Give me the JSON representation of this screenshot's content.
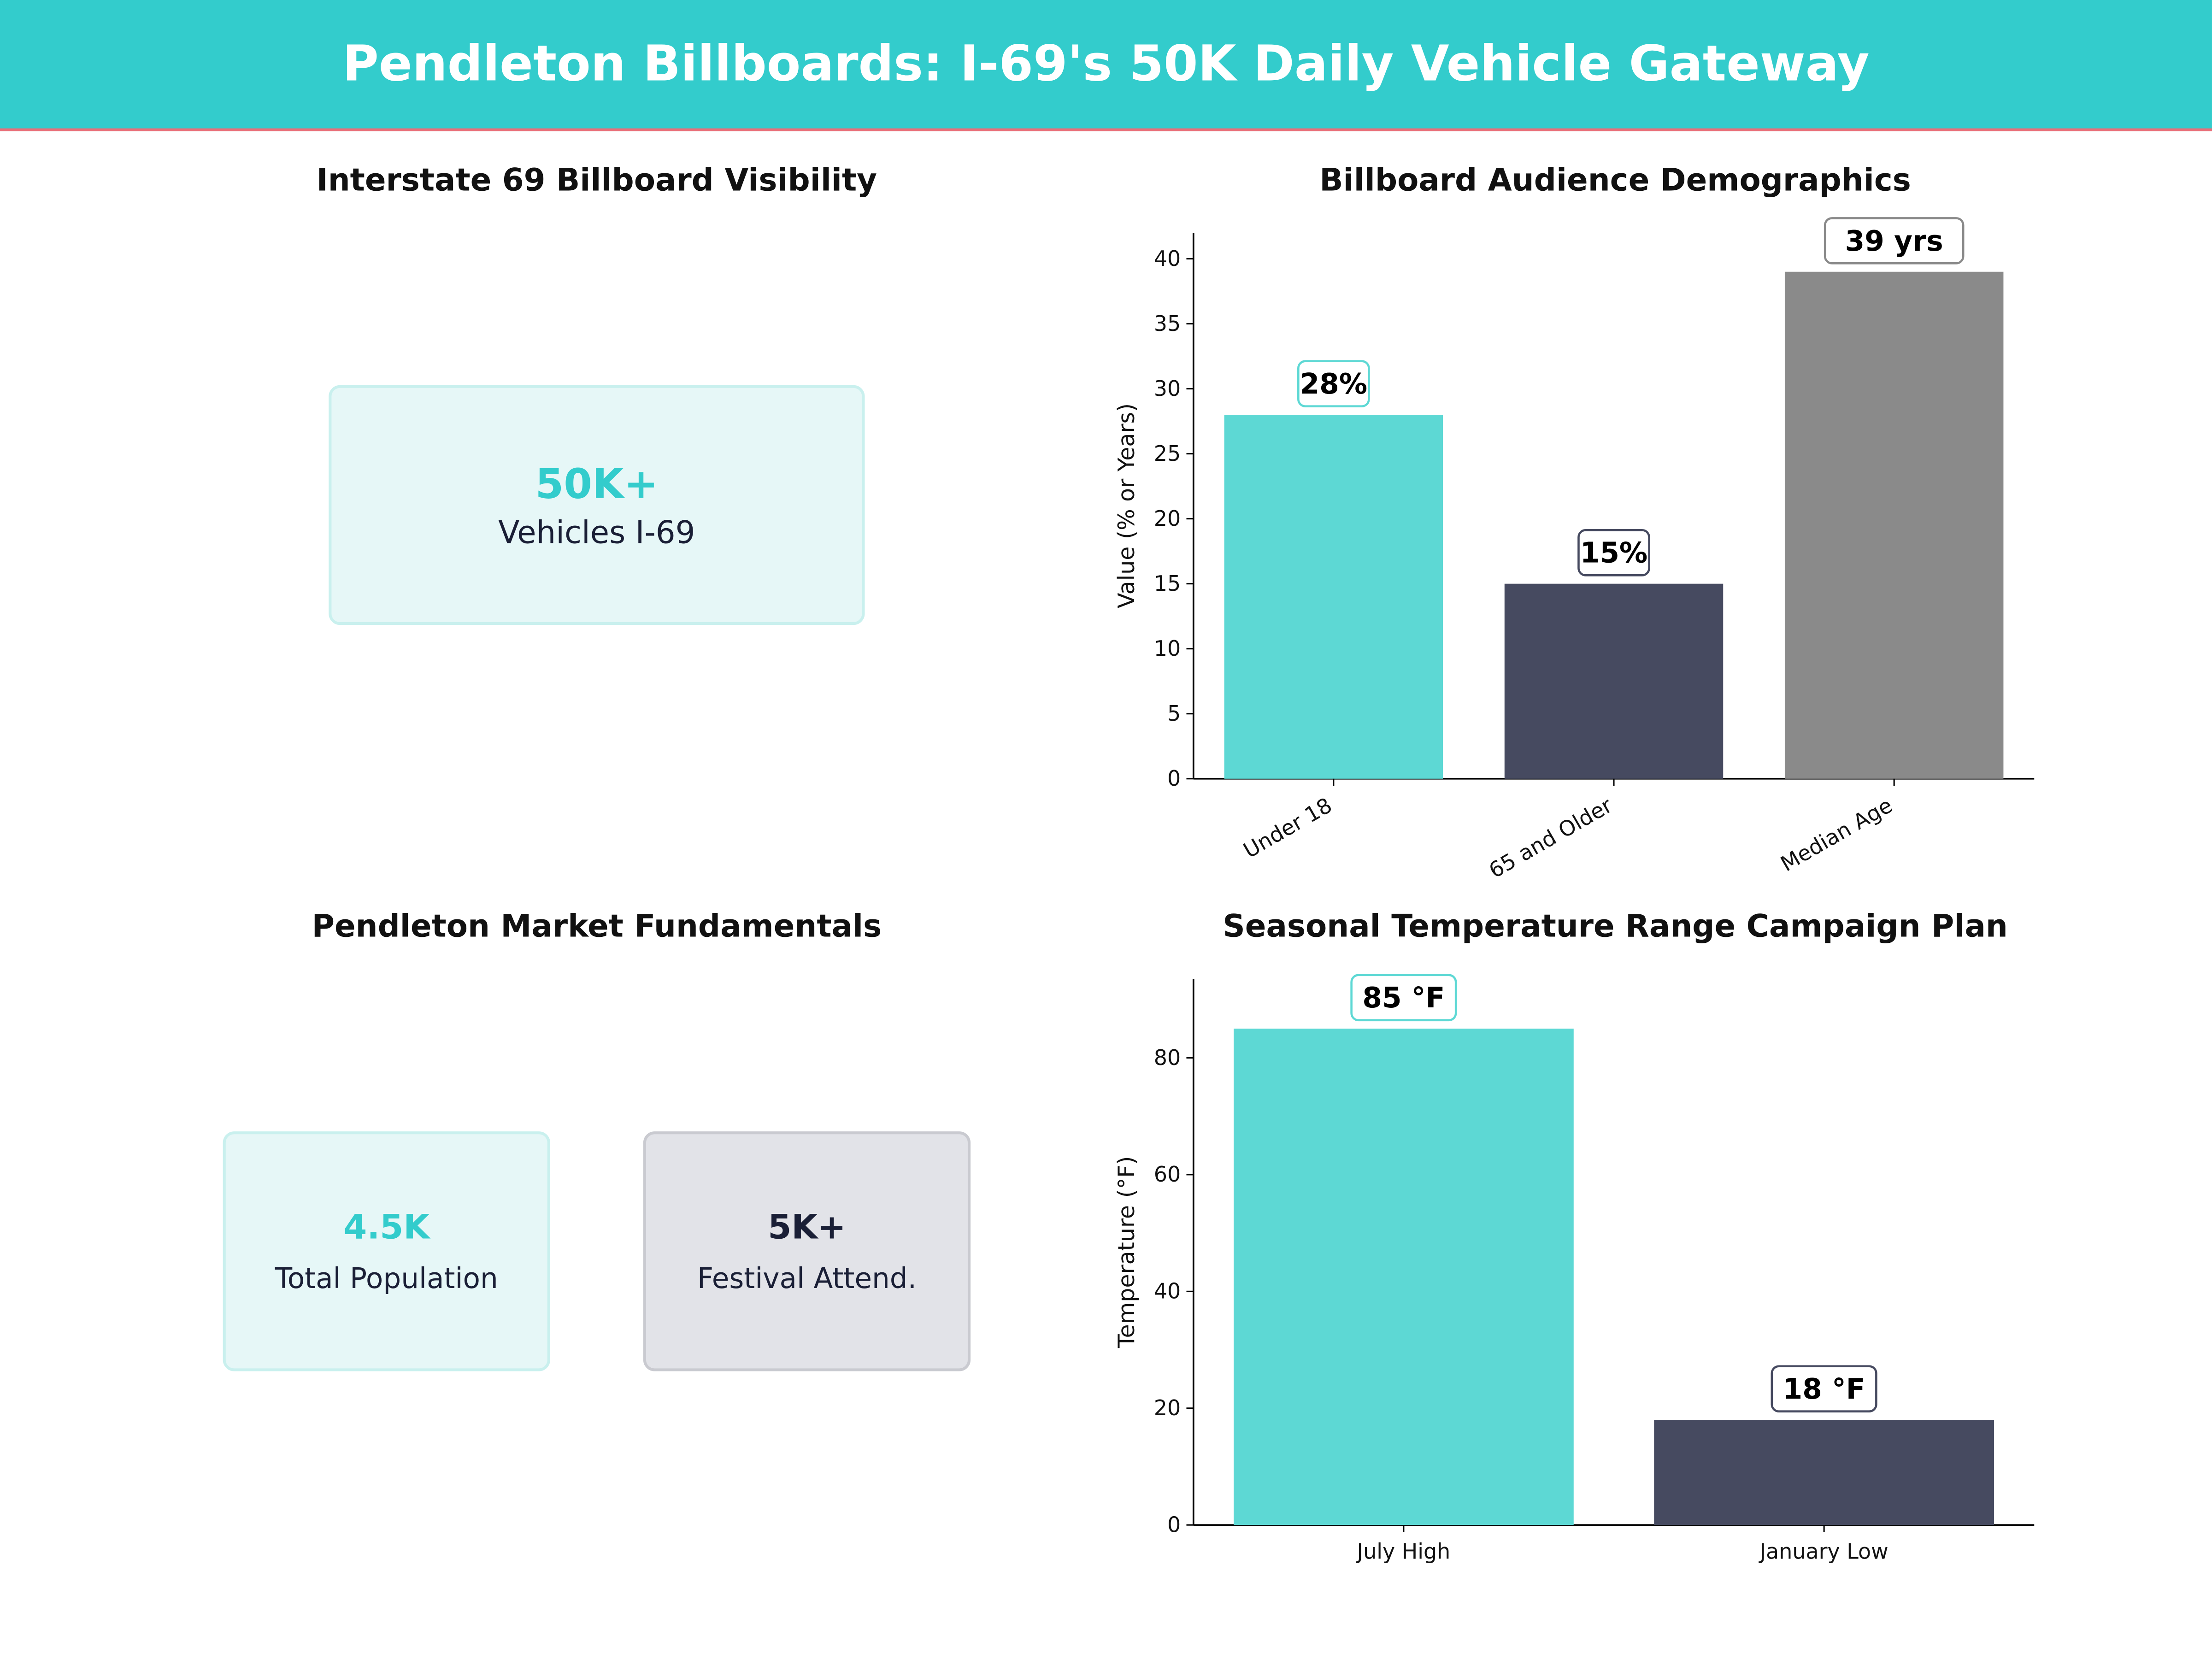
{
  "header": {
    "title": "Pendleton Billboards: I-69's 50K Daily Vehicle Gateway"
  },
  "panel_visibility": {
    "title": "Interstate 69 Billboard Visibility",
    "card": {
      "value": "50K+",
      "label": "Vehicles I-69"
    }
  },
  "panel_market": {
    "title": "Pendleton Market Fundamentals",
    "cards": [
      {
        "value": "4.5K",
        "label": "Total Population"
      },
      {
        "value": "5K+",
        "label": "Festival Attend."
      }
    ]
  },
  "colors": {
    "teal": "#5dd8d4",
    "navy": "#464a60",
    "gray": "#8a8a8a",
    "header": "#33cccc"
  },
  "chart_data": [
    {
      "type": "bar",
      "title": "Billboard Audience Demographics",
      "ylabel": "Value (% or Years)",
      "xlabel": "",
      "categories": [
        "Under 18",
        "65 and Older",
        "Median Age"
      ],
      "values": [
        28,
        15,
        39
      ],
      "data_labels": [
        "28%",
        "15%",
        "39  yrs"
      ],
      "bar_colors": [
        "#5dd8d4",
        "#464a60",
        "#8a8a8a"
      ],
      "ylim": [
        0,
        42
      ],
      "yticks": [
        0,
        5,
        10,
        15,
        20,
        25,
        30,
        35,
        40
      ],
      "grid": false
    },
    {
      "type": "bar",
      "title": "Seasonal Temperature Range Campaign Plan",
      "ylabel": "Temperature (°F)",
      "xlabel": "",
      "categories": [
        "July High",
        "January Low"
      ],
      "values": [
        85,
        18
      ],
      "data_labels": [
        "85 °F",
        "18 °F"
      ],
      "bar_colors": [
        "#5dd8d4",
        "#464a60"
      ],
      "ylim": [
        0,
        93.5
      ],
      "yticks": [
        0,
        20,
        40,
        60,
        80
      ],
      "grid": false
    }
  ]
}
